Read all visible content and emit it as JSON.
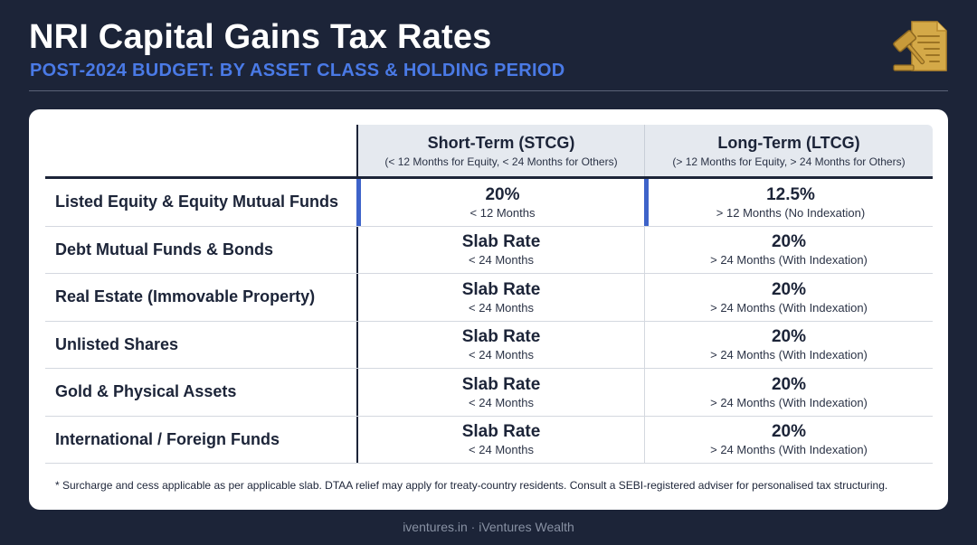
{
  "header": {
    "title": "NRI Capital Gains Tax Rates",
    "subtitle": "POST-2024 BUDGET: BY ASSET CLASS & HOLDING PERIOD"
  },
  "icons": {
    "logo": "tax-document-gavel-icon"
  },
  "colors": {
    "background": "#1c2438",
    "accent": "#4a7ae6",
    "highlight_bar": "#3e63c9",
    "logo_gold": "#d4a948"
  },
  "table": {
    "columns": [
      {
        "label": "Short-Term (STCG)",
        "sub": "(< 12 Months for Equity, < 24 Months for Others)"
      },
      {
        "label": "Long-Term (LTCG)",
        "sub": "(> 12 Months for Equity, > 24 Months for Others)"
      }
    ],
    "rows": [
      {
        "label": "Listed Equity & Equity Mutual Funds",
        "stcg": "20%",
        "stcg_period": "< 12 Months",
        "ltcg": "12.5%",
        "ltcg_period": "> 12 Months (No Indexation)"
      },
      {
        "label": "Debt Mutual Funds & Bonds",
        "stcg": "Slab Rate",
        "stcg_period": "< 24 Months",
        "ltcg": "20%",
        "ltcg_period": "> 24 Months (With Indexation)"
      },
      {
        "label": "Real Estate (Immovable Property)",
        "stcg": "Slab Rate",
        "stcg_period": "< 24 Months",
        "ltcg": "20%",
        "ltcg_period": "> 24 Months (With Indexation)"
      },
      {
        "label": "Unlisted Shares",
        "stcg": "Slab Rate",
        "stcg_period": "< 24 Months",
        "ltcg": "20%",
        "ltcg_period": "> 24 Months (With Indexation)"
      },
      {
        "label": "Gold & Physical Assets",
        "stcg": "Slab Rate",
        "stcg_period": "< 24 Months",
        "ltcg": "20%",
        "ltcg_period": "> 24 Months (With Indexation)"
      },
      {
        "label": "International / Foreign Funds",
        "stcg": "Slab Rate",
        "stcg_period": "< 24 Months",
        "ltcg": "20%",
        "ltcg_period": "> 24 Months (With Indexation)"
      }
    ]
  },
  "footnote": "* Surcharge and cess applicable as per applicable slab. DTAA relief may apply for treaty-country residents. Consult a SEBI-registered adviser for personalised tax structuring.",
  "credit": "iventures.in · iVentures Wealth"
}
